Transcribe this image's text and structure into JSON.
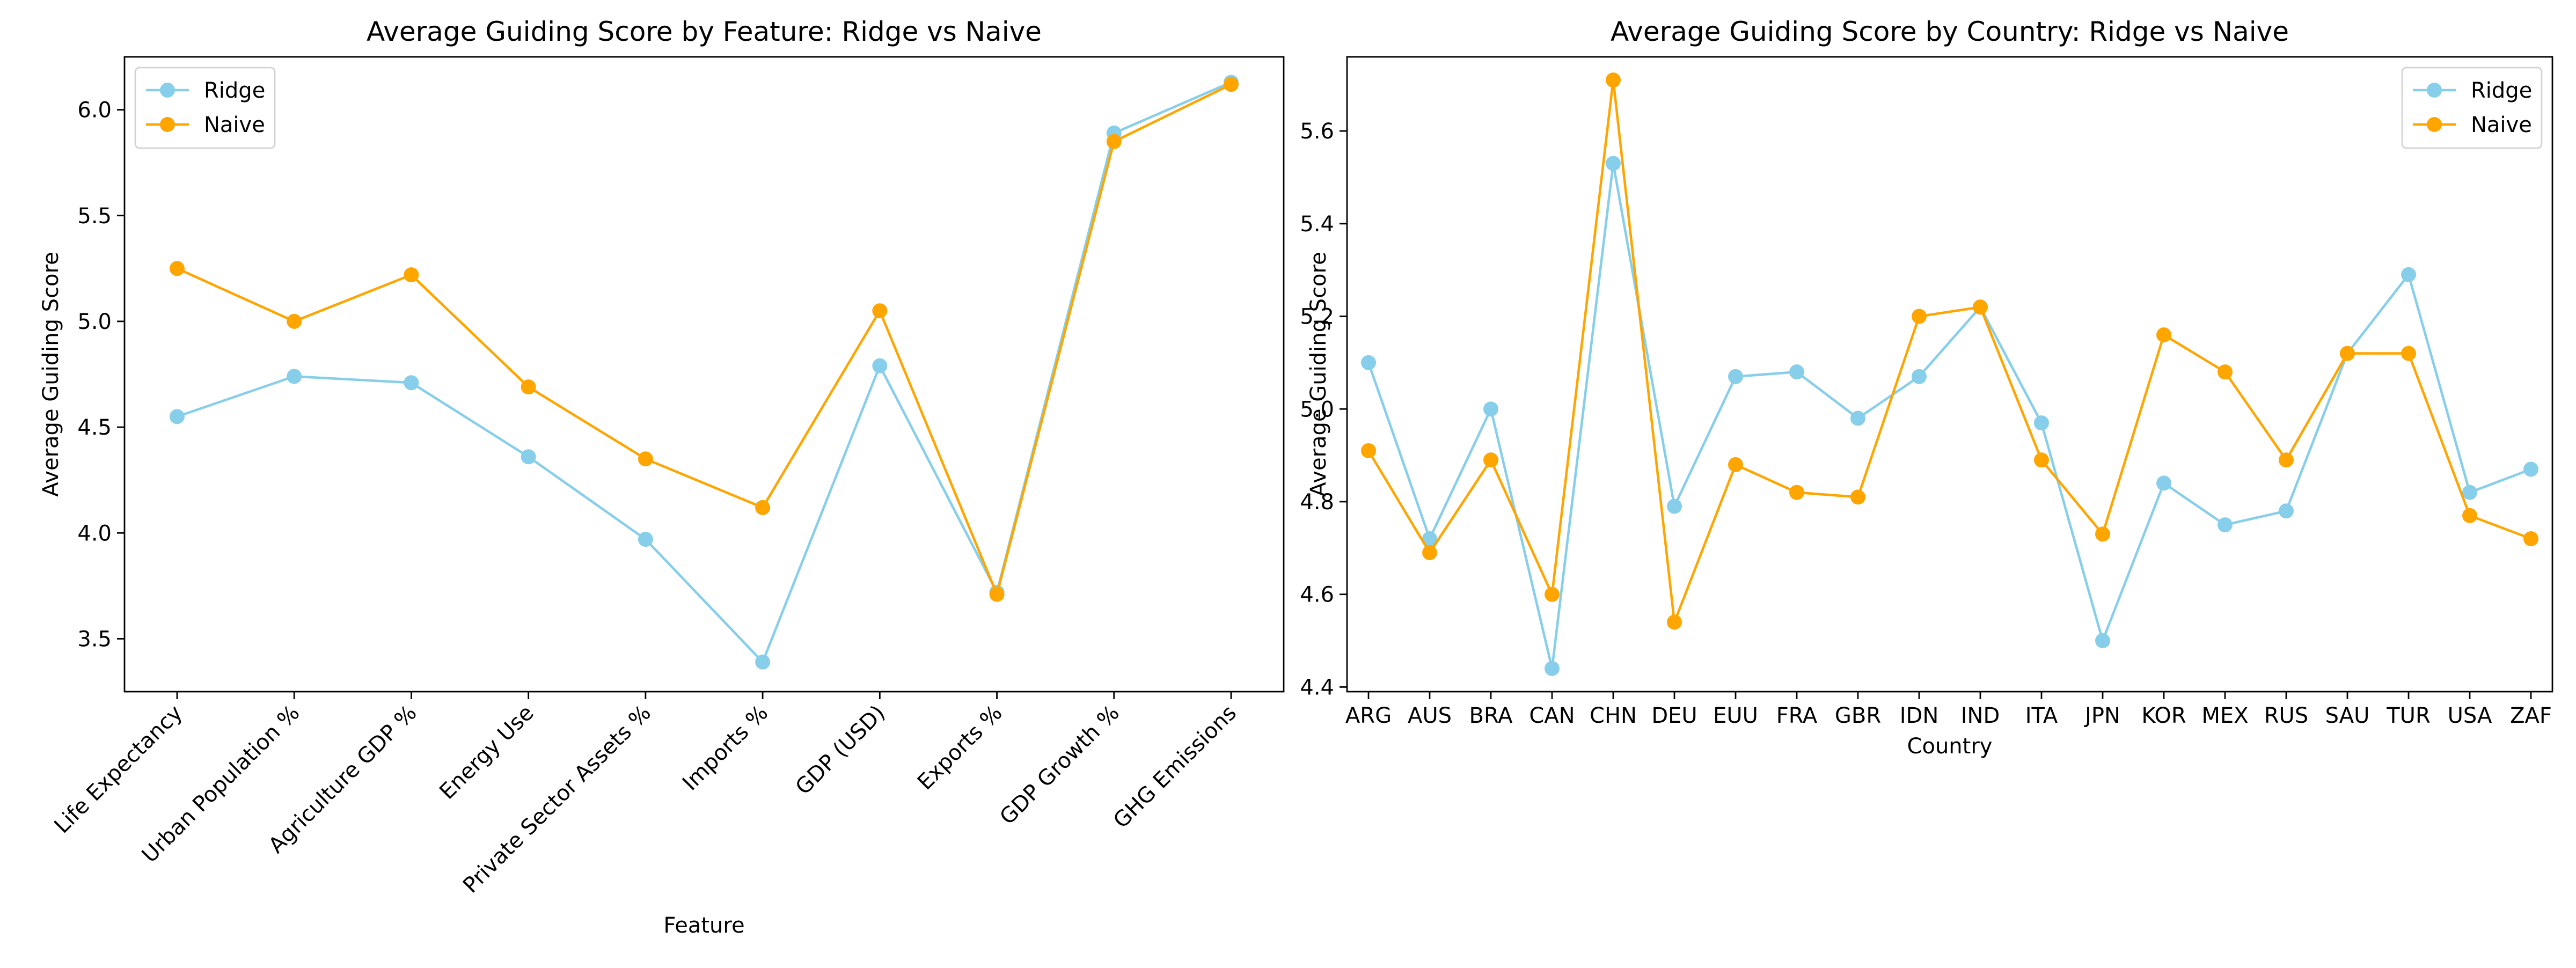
{
  "colors": {
    "ridge": "#87CEEB",
    "naive": "#FFA500"
  },
  "chart_data": [
    {
      "type": "line",
      "title": "Average Guiding Score by Feature: Ridge vs Naive",
      "xlabel": "Feature",
      "ylabel": "Average Guiding Score",
      "categories": [
        "Life Expectancy",
        "Urban Population %",
        "Agriculture GDP %",
        "Energy Use",
        "Private Sector Assets %",
        "Imports %",
        "GDP (USD)",
        "Exports %",
        "GDP Growth %",
        "GHG Emissions"
      ],
      "ylim": [
        3.25,
        6.25
      ],
      "yticks": [
        3.5,
        4.0,
        4.5,
        5.0,
        5.5,
        6.0
      ],
      "ytick_labels": [
        "3.5",
        "4.0",
        "4.5",
        "5.0",
        "5.5",
        "6.0"
      ],
      "grid": false,
      "legend_position": "upper left",
      "series": [
        {
          "name": "Ridge",
          "color": "#87CEEB",
          "values": [
            4.55,
            4.74,
            4.71,
            4.36,
            3.97,
            3.39,
            4.79,
            3.72,
            5.89,
            6.13
          ]
        },
        {
          "name": "Naive",
          "color": "#FFA500",
          "values": [
            5.25,
            5.0,
            5.22,
            4.69,
            4.35,
            4.12,
            5.05,
            3.71,
            5.85,
            6.12
          ]
        }
      ]
    },
    {
      "type": "line",
      "title": "Average Guiding Score by Country: Ridge vs Naive",
      "xlabel": "Country",
      "ylabel": "Average Guiding Score",
      "categories": [
        "ARG",
        "AUS",
        "BRA",
        "CAN",
        "CHN",
        "DEU",
        "EUU",
        "FRA",
        "GBR",
        "IDN",
        "IND",
        "ITA",
        "JPN",
        "KOR",
        "MEX",
        "RUS",
        "SAU",
        "TUR",
        "USA",
        "ZAF"
      ],
      "ylim": [
        4.39,
        5.76
      ],
      "yticks": [
        4.4,
        4.6,
        4.8,
        5.0,
        5.2,
        5.4,
        5.6
      ],
      "ytick_labels": [
        "4.4",
        "4.6",
        "4.8",
        "5.0",
        "5.2",
        "5.4",
        "5.6"
      ],
      "grid": false,
      "legend_position": "upper right",
      "series": [
        {
          "name": "Ridge",
          "color": "#87CEEB",
          "values": [
            5.1,
            4.72,
            5.0,
            4.44,
            5.53,
            4.79,
            5.07,
            5.08,
            4.98,
            5.07,
            5.22,
            4.97,
            4.5,
            4.84,
            4.75,
            4.78,
            5.12,
            5.29,
            4.82,
            4.87
          ]
        },
        {
          "name": "Naive",
          "color": "#FFA500",
          "values": [
            4.91,
            4.69,
            4.89,
            4.6,
            5.71,
            4.54,
            4.88,
            4.82,
            4.81,
            5.2,
            5.22,
            4.89,
            4.73,
            5.16,
            5.08,
            4.89,
            5.12,
            5.12,
            4.77,
            4.72
          ]
        }
      ]
    }
  ]
}
